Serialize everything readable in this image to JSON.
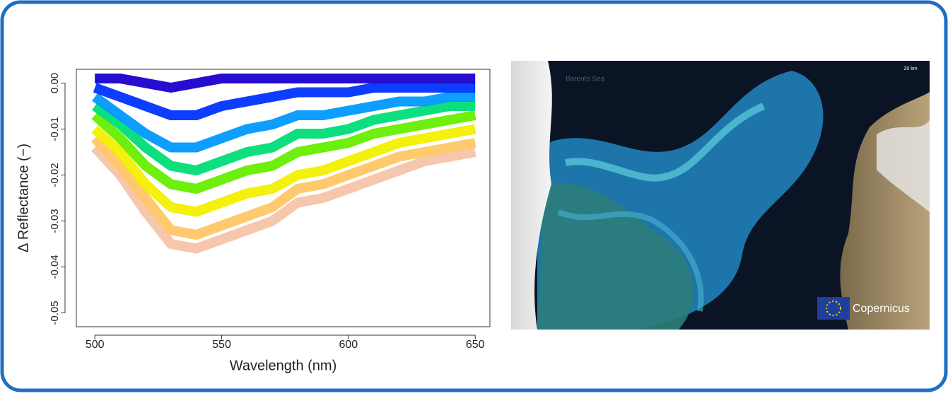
{
  "chart_data": {
    "type": "line",
    "x_label": "Wavelength (nm)",
    "y_label": "Δ Reflectance (−)",
    "x": [
      500,
      510,
      520,
      530,
      540,
      550,
      560,
      570,
      580,
      590,
      600,
      610,
      620,
      630,
      640,
      650
    ],
    "xlim": [
      492.7,
      655.8
    ],
    "xticks": [
      500,
      550,
      600,
      650
    ],
    "ylim": [
      -0.053,
      0.003
    ],
    "yticks": [
      {
        "value": 0,
        "label": "0.00"
      },
      {
        "value": -0.01,
        "label": "-0.01"
      },
      {
        "value": -0.02,
        "label": "-0.02"
      },
      {
        "value": -0.03,
        "label": "-0.03"
      },
      {
        "value": -0.04,
        "label": "-0.04"
      },
      {
        "value": -0.05,
        "label": "-0.05"
      }
    ],
    "series": [
      {
        "color": "#f5c4a8",
        "values": [
          -0.014,
          -0.02,
          -0.028,
          -0.035,
          -0.036,
          -0.034,
          -0.032,
          -0.03,
          -0.026,
          -0.025,
          -0.023,
          -0.021,
          -0.019,
          -0.017,
          -0.016,
          -0.015
        ]
      },
      {
        "color": "#ffc766",
        "values": [
          -0.012,
          -0.018,
          -0.025,
          -0.032,
          -0.033,
          -0.031,
          -0.029,
          -0.027,
          -0.023,
          -0.022,
          -0.02,
          -0.018,
          -0.016,
          -0.015,
          -0.014,
          -0.013
        ]
      },
      {
        "color": "#f2f000",
        "values": [
          -0.01,
          -0.015,
          -0.022,
          -0.027,
          -0.028,
          -0.026,
          -0.024,
          -0.023,
          -0.02,
          -0.019,
          -0.017,
          -0.015,
          -0.013,
          -0.012,
          -0.011,
          -0.01
        ]
      },
      {
        "color": "#66ee00",
        "values": [
          -0.007,
          -0.012,
          -0.018,
          -0.022,
          -0.023,
          -0.021,
          -0.019,
          -0.018,
          -0.015,
          -0.014,
          -0.013,
          -0.011,
          -0.01,
          -0.009,
          -0.008,
          -0.007
        ]
      },
      {
        "color": "#00dd77",
        "values": [
          -0.005,
          -0.009,
          -0.014,
          -0.018,
          -0.019,
          -0.017,
          -0.015,
          -0.014,
          -0.011,
          -0.011,
          -0.01,
          -0.008,
          -0.007,
          -0.006,
          -0.005,
          -0.005
        ]
      },
      {
        "color": "#0099ff",
        "values": [
          -0.003,
          -0.007,
          -0.011,
          -0.014,
          -0.014,
          -0.012,
          -0.01,
          -0.009,
          -0.007,
          -0.007,
          -0.006,
          -0.005,
          -0.004,
          -0.004,
          -0.003,
          -0.003
        ]
      },
      {
        "color": "#0033ff",
        "values": [
          -0.001,
          -0.003,
          -0.005,
          -0.007,
          -0.007,
          -0.005,
          -0.004,
          -0.003,
          -0.002,
          -0.002,
          -0.002,
          -0.001,
          -0.001,
          -0.001,
          -0.001,
          -0.001
        ]
      },
      {
        "color": "#1a00cc",
        "values": [
          0.001,
          0.001,
          0,
          -0.001,
          0,
          0.001,
          0.001,
          0.001,
          0.001,
          0.001,
          0.001,
          0.001,
          0.001,
          0.001,
          0.001,
          0.001
        ]
      }
    ]
  },
  "image": {
    "place_label": "Barents Sea",
    "scale_label": "20 km",
    "logo_text": "Copernicus"
  }
}
